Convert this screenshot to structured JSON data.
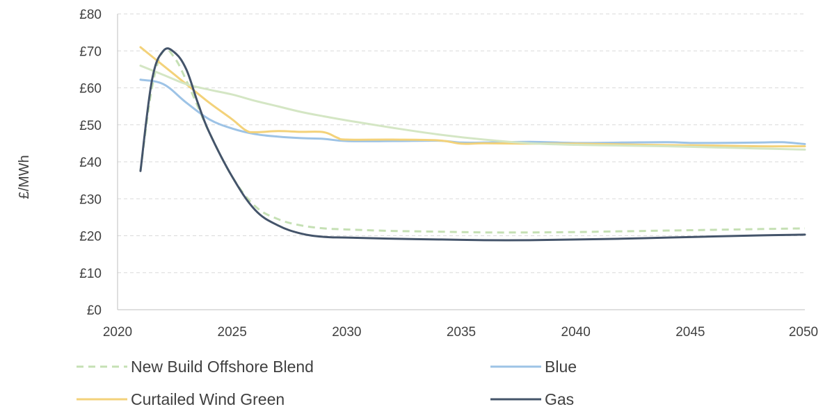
{
  "chart_data": {
    "type": "line",
    "title": "",
    "xlabel": "",
    "ylabel": "£/MWh",
    "xlim": [
      2020,
      2050
    ],
    "ylim": [
      0,
      80
    ],
    "x_ticks": [
      "2020",
      "2025",
      "2030",
      "2035",
      "2040",
      "2045",
      "2050"
    ],
    "y_ticks": [
      "£0",
      "£10",
      "£20",
      "£30",
      "£40",
      "£50",
      "£60",
      "£70",
      "£80"
    ],
    "grid": true,
    "legend_position": "bottom",
    "series": [
      {
        "name": "New Build Offshore Blend",
        "color": "#c5e0b4",
        "style": "dashed",
        "x": [
          2021,
          2021.5,
          2022,
          2022.5,
          2023,
          2023.5,
          2024,
          2025,
          2026,
          2027,
          2028,
          2029,
          2030,
          2032,
          2034,
          2036,
          2038,
          2040,
          2042,
          2044,
          2046,
          2048,
          2050
        ],
        "y": [
          37.5,
          60,
          70,
          68,
          62,
          55,
          48,
          36,
          28,
          24.5,
          22.8,
          22,
          21.7,
          21.3,
          21.1,
          20.9,
          20.9,
          21,
          21.2,
          21.4,
          21.6,
          21.8,
          22
        ]
      },
      {
        "name": "Blue",
        "color": "#9dc3e6",
        "style": "solid",
        "x": [
          2021,
          2022,
          2023,
          2024,
          2025,
          2026,
          2027,
          2028,
          2029,
          2030,
          2032,
          2034,
          2035,
          2036,
          2038,
          2040,
          2042,
          2044,
          2045,
          2046,
          2048,
          2049,
          2050
        ],
        "y": [
          62.2,
          61,
          56,
          51.5,
          49,
          47.5,
          46.8,
          46.4,
          46.2,
          45.6,
          45.6,
          45.7,
          45.2,
          45.2,
          45.4,
          45.1,
          45.2,
          45.3,
          45.1,
          45.1,
          45.2,
          45.3,
          44.8
        ]
      },
      {
        "name": "Curtailed Wind Green",
        "color": "#f3d27a",
        "style": "solid",
        "x": [
          2021,
          2022,
          2023,
          2024,
          2025,
          2025.6,
          2026,
          2027,
          2028,
          2029,
          2029.6,
          2030,
          2032,
          2034,
          2035,
          2036,
          2038,
          2040,
          2042,
          2044,
          2046,
          2048,
          2050
        ],
        "y": [
          71,
          66,
          61,
          56,
          51.5,
          48.5,
          48,
          48.3,
          48.1,
          48,
          46.5,
          46,
          46,
          45.8,
          44.9,
          45,
          44.9,
          44.9,
          44.7,
          44.5,
          44.4,
          44.2,
          44.2
        ]
      },
      {
        "name": "",
        "color": "#d4e6c4",
        "style": "solid",
        "x": [
          2021,
          2022,
          2023,
          2024,
          2025,
          2026,
          2027,
          2028,
          2029,
          2030,
          2032,
          2034,
          2036,
          2038,
          2040,
          2042,
          2044,
          2046,
          2048,
          2050
        ],
        "y": [
          66,
          63.5,
          61,
          59.5,
          58.2,
          56.5,
          55,
          53.5,
          52.3,
          51.2,
          49.2,
          47.4,
          46,
          45,
          44.6,
          44.4,
          44.2,
          43.9,
          43.6,
          43.3
        ]
      },
      {
        "name": "Gas",
        "color": "#44546a",
        "style": "solid",
        "x": [
          2021,
          2021.5,
          2022,
          2022.5,
          2023,
          2023.5,
          2024,
          2025,
          2026,
          2027,
          2028,
          2029,
          2030,
          2032,
          2034,
          2036,
          2038,
          2040,
          2042,
          2044,
          2046,
          2048,
          2050
        ],
        "y": [
          37.5,
          62,
          70,
          69.5,
          65,
          56,
          48,
          36,
          27,
          22.8,
          20.6,
          19.7,
          19.5,
          19.2,
          19,
          18.8,
          18.8,
          19,
          19.2,
          19.5,
          19.8,
          20.1,
          20.3
        ]
      }
    ],
    "legend": [
      {
        "label": "New Build Offshore Blend",
        "color": "#c5e0b4",
        "style": "dashed"
      },
      {
        "label": "Blue",
        "color": "#9dc3e6",
        "style": "solid"
      },
      {
        "label": "Curtailed Wind Green",
        "color": "#f3d27a",
        "style": "solid"
      },
      {
        "label": "Gas",
        "color": "#44546a",
        "style": "solid"
      }
    ]
  }
}
